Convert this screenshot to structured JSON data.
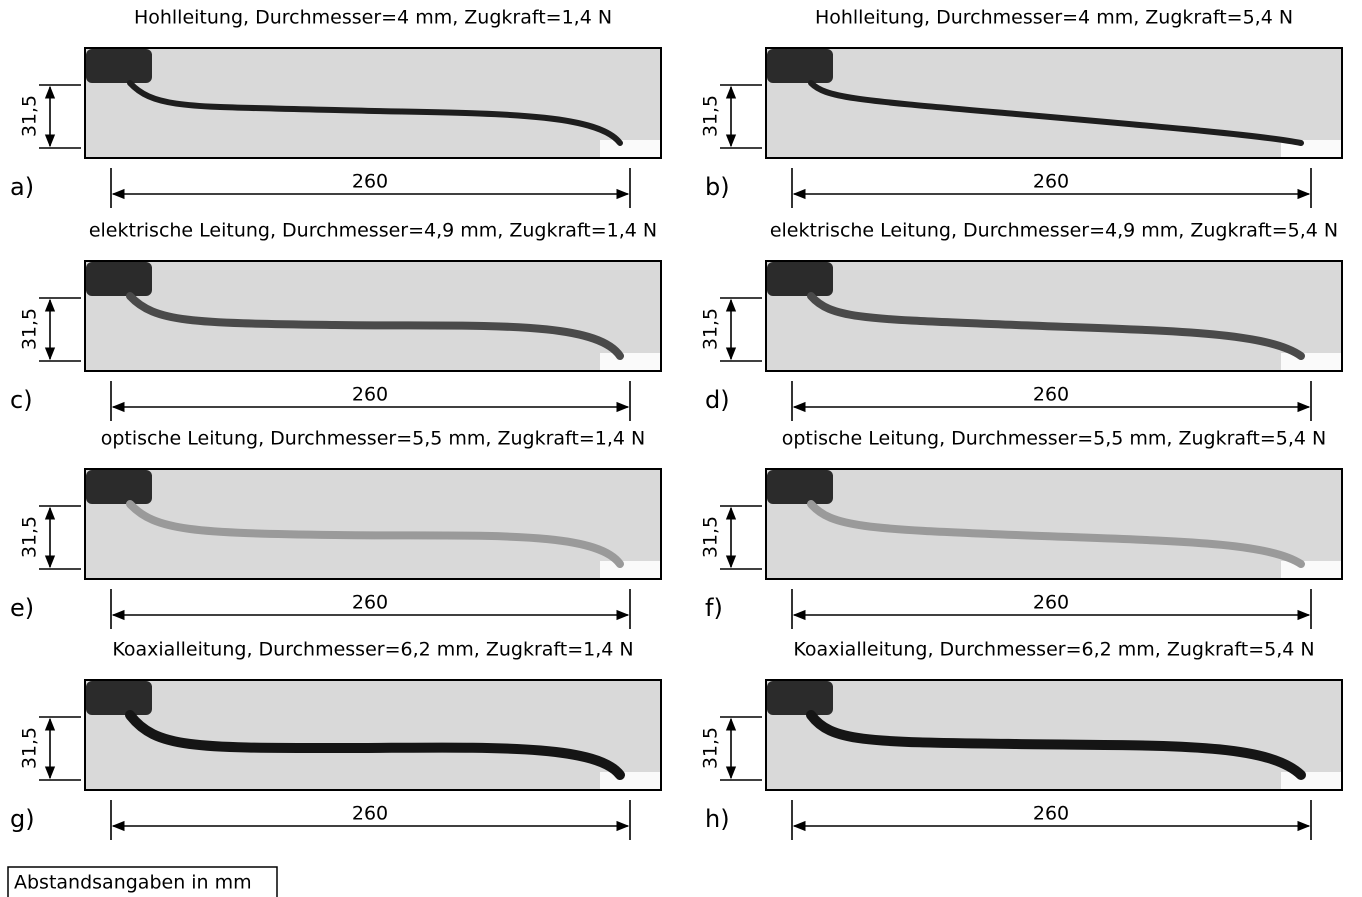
{
  "panels": [
    {
      "label": "a)",
      "title": "Hohlleitung, Durchmesser=4 mm, Zugkraft=1,4 N",
      "height_dim": "31,5",
      "width_dim": "260"
    },
    {
      "label": "b)",
      "title": "Hohlleitung, Durchmesser=4 mm, Zugkraft=5,4 N",
      "height_dim": "31,5",
      "width_dim": "260"
    },
    {
      "label": "c)",
      "title": "elektrische Leitung, Durchmesser=4,9 mm, Zugkraft=1,4 N",
      "height_dim": "31,5",
      "width_dim": "260"
    },
    {
      "label": "d)",
      "title": "elektrische Leitung, Durchmesser=4,9 mm, Zugkraft=5,4 N",
      "height_dim": "31,5",
      "width_dim": "260"
    },
    {
      "label": "e)",
      "title": "optische Leitung, Durchmesser=5,5 mm, Zugkraft=1,4 N",
      "height_dim": "31,5",
      "width_dim": "260"
    },
    {
      "label": "f)",
      "title": "optische Leitung, Durchmesser=5,5 mm, Zugkraft=5,4 N",
      "height_dim": "31,5",
      "width_dim": "260"
    },
    {
      "label": "g)",
      "title": "Koaxialleitung, Durchmesser=6,2 mm, Zugkraft=1,4 N",
      "height_dim": "31,5",
      "width_dim": "260"
    },
    {
      "label": "h)",
      "title": "Koaxialleitung, Durchmesser=6,2 mm, Zugkraft=5,4 N",
      "height_dim": "31,5",
      "width_dim": "260"
    }
  ],
  "note": "Abstandsangaben in mm"
}
